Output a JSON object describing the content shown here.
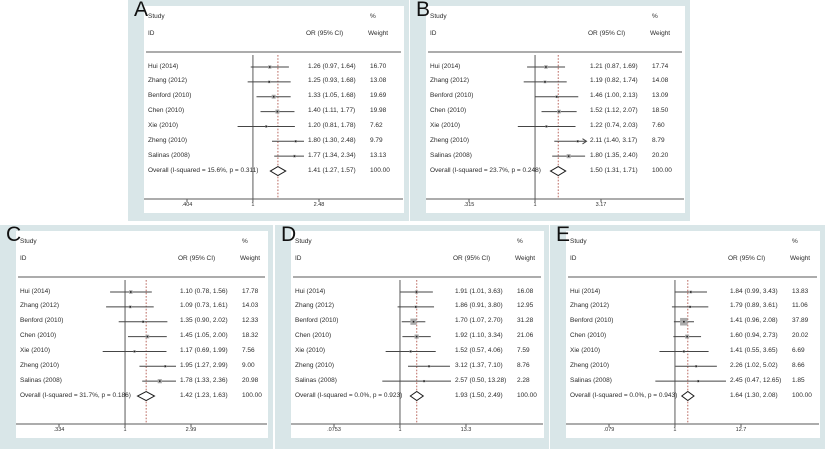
{
  "figure_title": "Forest plots of meta-analysis (panels A-E)",
  "colors": {
    "panel_bg": "#d9e6e8",
    "plot_bg": "#ffffff",
    "axis_line": "#5a5a5a",
    "ci_line": "#454545",
    "marker_fill": "#ababab",
    "marker_dot": "#222222",
    "overall_dash": "#b2574d",
    "diamond_stroke": "#1a1a1a",
    "text": "#2b2b2b"
  },
  "columns": {
    "study": "Study",
    "id": "ID",
    "percent": "%",
    "or_ci": "OR (95% CI)",
    "weight": "Weight"
  },
  "chart_data": [
    {
      "type": "forest_plot",
      "letter": "A",
      "axis": {
        "min": 0.404,
        "max": 2.48,
        "ticks": [
          ".404",
          "1",
          "2.48"
        ],
        "scale": "log",
        "null_value": 1
      },
      "studies": [
        {
          "id": "Hui (2014)",
          "or": 1.26,
          "lo": 0.97,
          "hi": 1.64,
          "label": "1.26 (0.97, 1.64)",
          "weight": "16.70"
        },
        {
          "id": "Zhang (2012)",
          "or": 1.25,
          "lo": 0.93,
          "hi": 1.68,
          "label": "1.25 (0.93, 1.68)",
          "weight": "13.08"
        },
        {
          "id": "Benford (2010)",
          "or": 1.33,
          "lo": 1.05,
          "hi": 1.68,
          "label": "1.33 (1.05, 1.68)",
          "weight": "19.69"
        },
        {
          "id": "Chen (2010)",
          "or": 1.4,
          "lo": 1.11,
          "hi": 1.77,
          "label": "1.40 (1.11, 1.77)",
          "weight": "19.98"
        },
        {
          "id": "Xie (2010)",
          "or": 1.2,
          "lo": 0.81,
          "hi": 1.78,
          "label": "1.20 (0.81, 1.78)",
          "weight": "7.62"
        },
        {
          "id": "Zheng (2010)",
          "or": 1.8,
          "lo": 1.3,
          "hi": 2.48,
          "label": "1.80 (1.30, 2.48)",
          "weight": "9.79"
        },
        {
          "id": "Salinas (2008)",
          "or": 1.77,
          "lo": 1.34,
          "hi": 2.34,
          "label": "1.77 (1.34, 2.34)",
          "weight": "13.13"
        }
      ],
      "overall": {
        "id": "Overall  (I-squared = 15.6%, p = 0.311)",
        "or": 1.41,
        "lo": 1.27,
        "hi": 1.57,
        "label": "1.41 (1.27, 1.57)",
        "weight": "100.00"
      }
    },
    {
      "type": "forest_plot",
      "letter": "B",
      "axis": {
        "min": 0.315,
        "max": 3.17,
        "ticks": [
          ".315",
          "1",
          "3.17"
        ],
        "scale": "log",
        "null_value": 1
      },
      "studies": [
        {
          "id": "Hui (2014)",
          "or": 1.21,
          "lo": 0.87,
          "hi": 1.69,
          "label": "1.21 (0.87, 1.69)",
          "weight": "17.74"
        },
        {
          "id": "Zhang (2012)",
          "or": 1.19,
          "lo": 0.82,
          "hi": 1.74,
          "label": "1.19 (0.82, 1.74)",
          "weight": "14.08"
        },
        {
          "id": "Benford (2010)",
          "or": 1.46,
          "lo": 1.0,
          "hi": 2.13,
          "label": "1.46 (1.00, 2.13)",
          "weight": "13.09"
        },
        {
          "id": "Chen (2010)",
          "or": 1.52,
          "lo": 1.12,
          "hi": 2.07,
          "label": "1.52 (1.12, 2.07)",
          "weight": "18.50"
        },
        {
          "id": "Xie (2010)",
          "or": 1.22,
          "lo": 0.74,
          "hi": 2.03,
          "label": "1.22 (0.74, 2.03)",
          "weight": "7.60"
        },
        {
          "id": "Zheng (2010)",
          "or": 2.11,
          "lo": 1.4,
          "hi": 3.17,
          "label": "2.11 (1.40, 3.17)",
          "weight": "8.79",
          "arrow": true
        },
        {
          "id": "Salinas (2008)",
          "or": 1.8,
          "lo": 1.35,
          "hi": 2.4,
          "label": "1.80 (1.35, 2.40)",
          "weight": "20.20"
        }
      ],
      "overall": {
        "id": "Overall  (I-squared = 23.7%, p = 0.248)",
        "or": 1.5,
        "lo": 1.31,
        "hi": 1.71,
        "label": "1.50 (1.31, 1.71)",
        "weight": "100.00"
      }
    },
    {
      "type": "forest_plot",
      "letter": "C",
      "axis": {
        "min": 0.334,
        "max": 2.99,
        "ticks": [
          ".334",
          "1",
          "2.99"
        ],
        "scale": "log",
        "null_value": 1
      },
      "studies": [
        {
          "id": "Hui (2014)",
          "or": 1.1,
          "lo": 0.78,
          "hi": 1.56,
          "label": "1.10 (0.78, 1.56)",
          "weight": "17.78"
        },
        {
          "id": "Zhang (2012)",
          "or": 1.09,
          "lo": 0.73,
          "hi": 1.61,
          "label": "1.09 (0.73, 1.61)",
          "weight": "14.03"
        },
        {
          "id": "Benford (2010)",
          "or": 1.35,
          "lo": 0.9,
          "hi": 2.02,
          "label": "1.35 (0.90, 2.02)",
          "weight": "12.33"
        },
        {
          "id": "Chen (2010)",
          "or": 1.45,
          "lo": 1.05,
          "hi": 2.0,
          "label": "1.45 (1.05, 2.00)",
          "weight": "18.32"
        },
        {
          "id": "Xie (2010)",
          "or": 1.17,
          "lo": 0.69,
          "hi": 1.99,
          "label": "1.17 (0.69, 1.99)",
          "weight": "7.56"
        },
        {
          "id": "Zheng (2010)",
          "or": 1.95,
          "lo": 1.27,
          "hi": 2.99,
          "label": "1.95 (1.27, 2.99)",
          "weight": "9.00"
        },
        {
          "id": "Salinas (2008)",
          "or": 1.78,
          "lo": 1.33,
          "hi": 2.36,
          "label": "1.78 (1.33, 2.36)",
          "weight": "20.98"
        }
      ],
      "overall": {
        "id": "Overall  (I-squared = 31.7%, p = 0.186)",
        "or": 1.42,
        "lo": 1.23,
        "hi": 1.63,
        "label": "1.42 (1.23, 1.63)",
        "weight": "100.00"
      }
    },
    {
      "type": "forest_plot",
      "letter": "D",
      "axis": {
        "min": 0.0753,
        "max": 13.3,
        "ticks": [
          ".0753",
          "1",
          "13.3"
        ],
        "scale": "log",
        "null_value": 1
      },
      "studies": [
        {
          "id": "Hui (2014)",
          "or": 1.91,
          "lo": 1.01,
          "hi": 3.63,
          "label": "1.91 (1.01, 3.63)",
          "weight": "16.08"
        },
        {
          "id": "Zhang (2012)",
          "or": 1.86,
          "lo": 0.91,
          "hi": 3.8,
          "label": "1.86 (0.91, 3.80)",
          "weight": "12.95"
        },
        {
          "id": "Benford (2010)",
          "or": 1.7,
          "lo": 1.07,
          "hi": 2.7,
          "label": "1.70 (1.07, 2.70)",
          "weight": "31.28"
        },
        {
          "id": "Chen (2010)",
          "or": 1.92,
          "lo": 1.1,
          "hi": 3.34,
          "label": "1.92 (1.10, 3.34)",
          "weight": "21.06"
        },
        {
          "id": "Xie (2010)",
          "or": 1.52,
          "lo": 0.57,
          "hi": 4.06,
          "label": "1.52 (0.57, 4.06)",
          "weight": "7.59"
        },
        {
          "id": "Zheng (2010)",
          "or": 3.12,
          "lo": 1.37,
          "hi": 7.1,
          "label": "3.12 (1.37, 7.10)",
          "weight": "8.76"
        },
        {
          "id": "Salinas (2008)",
          "or": 2.57,
          "lo": 0.5,
          "hi": 13.28,
          "label": "2.57 (0.50, 13.28)",
          "weight": "2.28"
        }
      ],
      "overall": {
        "id": "Overall  (I-squared = 0.0%, p = 0.923)",
        "or": 1.93,
        "lo": 1.5,
        "hi": 2.49,
        "label": "1.93 (1.50, 2.49)",
        "weight": "100.00"
      }
    },
    {
      "type": "forest_plot",
      "letter": "E",
      "axis": {
        "min": 0.079,
        "max": 12.7,
        "ticks": [
          ".079",
          "1",
          "12.7"
        ],
        "scale": "log",
        "null_value": 1
      },
      "studies": [
        {
          "id": "Hui (2014)",
          "or": 1.84,
          "lo": 0.99,
          "hi": 3.43,
          "label": "1.84 (0.99, 3.43)",
          "weight": "13.83"
        },
        {
          "id": "Zhang (2012)",
          "or": 1.79,
          "lo": 0.89,
          "hi": 3.61,
          "label": "1.79 (0.89, 3.61)",
          "weight": "11.06"
        },
        {
          "id": "Benford (2010)",
          "or": 1.41,
          "lo": 0.96,
          "hi": 2.08,
          "label": "1.41 (0.96, 2.08)",
          "weight": "37.89"
        },
        {
          "id": "Chen (2010)",
          "or": 1.6,
          "lo": 0.94,
          "hi": 2.73,
          "label": "1.60 (0.94, 2.73)",
          "weight": "20.02"
        },
        {
          "id": "Xie (2010)",
          "or": 1.41,
          "lo": 0.55,
          "hi": 3.65,
          "label": "1.41 (0.55, 3.65)",
          "weight": "6.69"
        },
        {
          "id": "Zheng (2010)",
          "or": 2.26,
          "lo": 1.02,
          "hi": 5.02,
          "label": "2.26 (1.02, 5.02)",
          "weight": "8.66"
        },
        {
          "id": "Salinas (2008)",
          "or": 2.45,
          "lo": 0.47,
          "hi": 12.65,
          "label": "2.45 (0.47, 12.65)",
          "weight": "1.85"
        }
      ],
      "overall": {
        "id": "Overall  (I-squared = 0.0%, p = 0.943)",
        "or": 1.64,
        "lo": 1.3,
        "hi": 2.08,
        "label": "1.64 (1.30, 2.08)",
        "weight": "100.00"
      }
    }
  ]
}
